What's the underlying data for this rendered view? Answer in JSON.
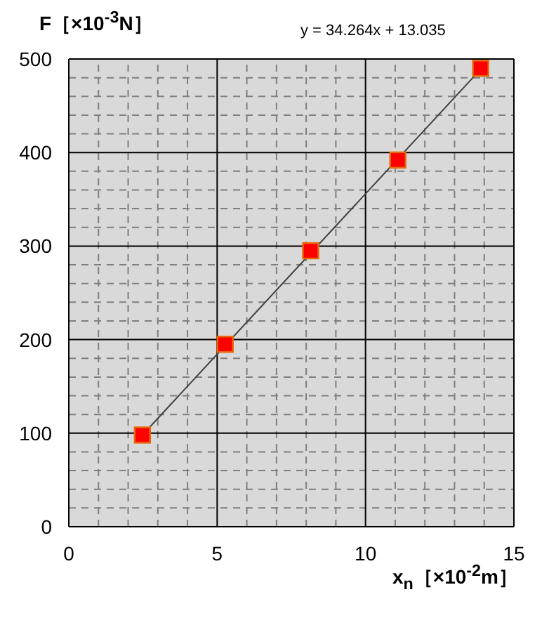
{
  "chart_data": {
    "type": "scatter",
    "xlabel": "x$_{n}$［×10$^{-2}$m］",
    "ylabel": "F［×10$^{-3}$N］",
    "annotations": [
      "y = 34.264x + 13.035"
    ],
    "x": [
      2.48,
      5.27,
      8.15,
      11.09,
      13.88
    ],
    "series": [
      {
        "color": "#ff0000",
        "marker": "square",
        "values": [
          98,
          195,
          295,
          392,
          490
        ]
      },
      {
        "type": "line",
        "color": "#404040",
        "x": [
          2.48,
          13.88
        ],
        "values": [
          98,
          489
        ]
      }
    ],
    "xlim": [
      0,
      15
    ],
    "ylim": [
      0,
      500
    ],
    "xticks": [
      0,
      5,
      10,
      15
    ],
    "yticks": [
      0,
      100,
      200,
      300,
      400,
      500
    ],
    "grid": true,
    "line_style": "solid"
  }
}
